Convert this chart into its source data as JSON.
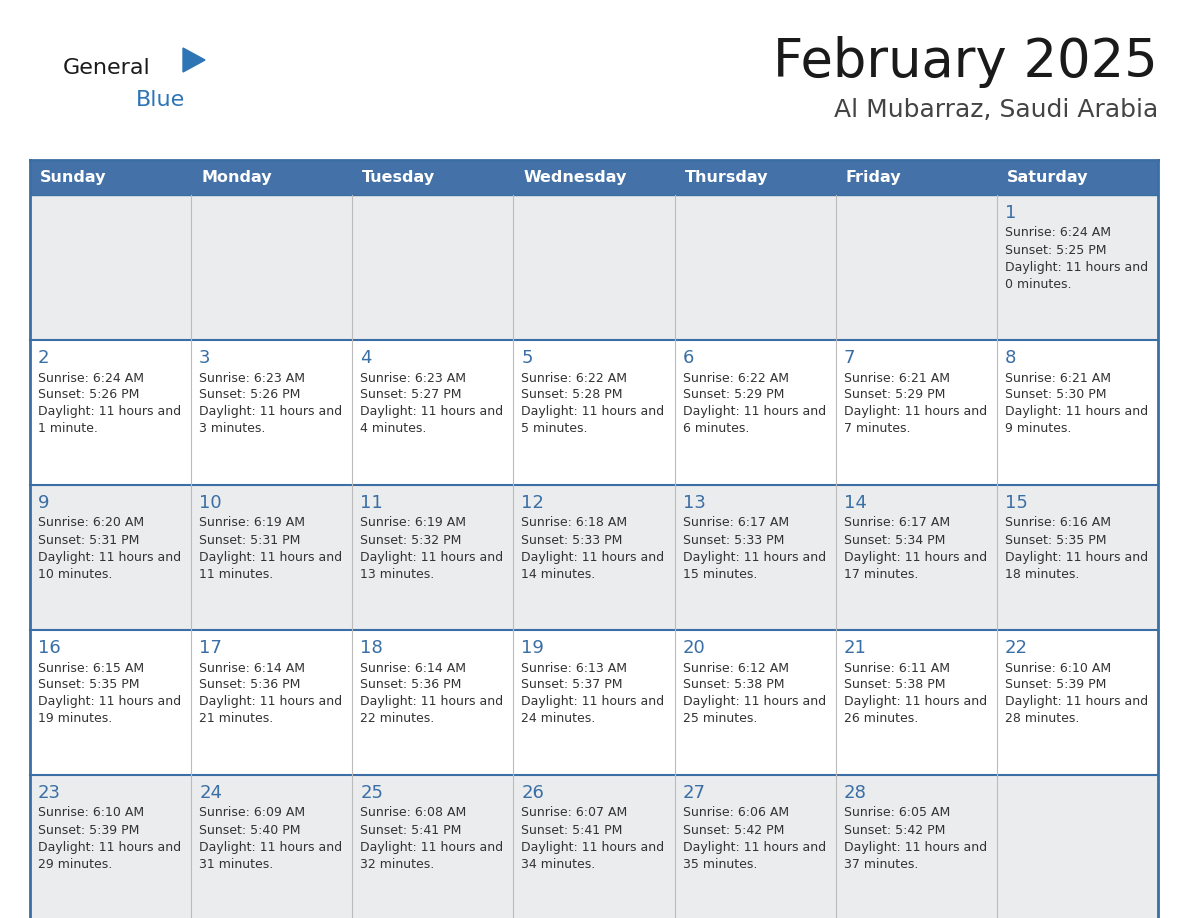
{
  "title": "February 2025",
  "subtitle": "Al Mubarraz, Saudi Arabia",
  "days_of_week": [
    "Sunday",
    "Monday",
    "Tuesday",
    "Wednesday",
    "Thursday",
    "Friday",
    "Saturday"
  ],
  "header_bg": "#4472A8",
  "header_text": "#FFFFFF",
  "row_bg_odd": "#EAECEE",
  "row_bg_even": "#FFFFFF",
  "day_num_color": "#3A6EA5",
  "cell_text_color": "#333333",
  "border_color": "#3A6EA5",
  "title_color": "#1a1a1a",
  "subtitle_color": "#444444",
  "logo_general_color": "#1a1a1a",
  "logo_blue_color": "#2E75B6",
  "calendar_data": [
    [
      null,
      null,
      null,
      null,
      null,
      null,
      {
        "day": 1,
        "sunrise": "6:24 AM",
        "sunset": "5:25 PM",
        "daylight": "11 hours and 0 minutes."
      }
    ],
    [
      {
        "day": 2,
        "sunrise": "6:24 AM",
        "sunset": "5:26 PM",
        "daylight": "11 hours and 1 minute."
      },
      {
        "day": 3,
        "sunrise": "6:23 AM",
        "sunset": "5:26 PM",
        "daylight": "11 hours and 3 minutes."
      },
      {
        "day": 4,
        "sunrise": "6:23 AM",
        "sunset": "5:27 PM",
        "daylight": "11 hours and 4 minutes."
      },
      {
        "day": 5,
        "sunrise": "6:22 AM",
        "sunset": "5:28 PM",
        "daylight": "11 hours and 5 minutes."
      },
      {
        "day": 6,
        "sunrise": "6:22 AM",
        "sunset": "5:29 PM",
        "daylight": "11 hours and 6 minutes."
      },
      {
        "day": 7,
        "sunrise": "6:21 AM",
        "sunset": "5:29 PM",
        "daylight": "11 hours and 7 minutes."
      },
      {
        "day": 8,
        "sunrise": "6:21 AM",
        "sunset": "5:30 PM",
        "daylight": "11 hours and 9 minutes."
      }
    ],
    [
      {
        "day": 9,
        "sunrise": "6:20 AM",
        "sunset": "5:31 PM",
        "daylight": "11 hours and 10 minutes."
      },
      {
        "day": 10,
        "sunrise": "6:19 AM",
        "sunset": "5:31 PM",
        "daylight": "11 hours and 11 minutes."
      },
      {
        "day": 11,
        "sunrise": "6:19 AM",
        "sunset": "5:32 PM",
        "daylight": "11 hours and 13 minutes."
      },
      {
        "day": 12,
        "sunrise": "6:18 AM",
        "sunset": "5:33 PM",
        "daylight": "11 hours and 14 minutes."
      },
      {
        "day": 13,
        "sunrise": "6:17 AM",
        "sunset": "5:33 PM",
        "daylight": "11 hours and 15 minutes."
      },
      {
        "day": 14,
        "sunrise": "6:17 AM",
        "sunset": "5:34 PM",
        "daylight": "11 hours and 17 minutes."
      },
      {
        "day": 15,
        "sunrise": "6:16 AM",
        "sunset": "5:35 PM",
        "daylight": "11 hours and 18 minutes."
      }
    ],
    [
      {
        "day": 16,
        "sunrise": "6:15 AM",
        "sunset": "5:35 PM",
        "daylight": "11 hours and 19 minutes."
      },
      {
        "day": 17,
        "sunrise": "6:14 AM",
        "sunset": "5:36 PM",
        "daylight": "11 hours and 21 minutes."
      },
      {
        "day": 18,
        "sunrise": "6:14 AM",
        "sunset": "5:36 PM",
        "daylight": "11 hours and 22 minutes."
      },
      {
        "day": 19,
        "sunrise": "6:13 AM",
        "sunset": "5:37 PM",
        "daylight": "11 hours and 24 minutes."
      },
      {
        "day": 20,
        "sunrise": "6:12 AM",
        "sunset": "5:38 PM",
        "daylight": "11 hours and 25 minutes."
      },
      {
        "day": 21,
        "sunrise": "6:11 AM",
        "sunset": "5:38 PM",
        "daylight": "11 hours and 26 minutes."
      },
      {
        "day": 22,
        "sunrise": "6:10 AM",
        "sunset": "5:39 PM",
        "daylight": "11 hours and 28 minutes."
      }
    ],
    [
      {
        "day": 23,
        "sunrise": "6:10 AM",
        "sunset": "5:39 PM",
        "daylight": "11 hours and 29 minutes."
      },
      {
        "day": 24,
        "sunrise": "6:09 AM",
        "sunset": "5:40 PM",
        "daylight": "11 hours and 31 minutes."
      },
      {
        "day": 25,
        "sunrise": "6:08 AM",
        "sunset": "5:41 PM",
        "daylight": "11 hours and 32 minutes."
      },
      {
        "day": 26,
        "sunrise": "6:07 AM",
        "sunset": "5:41 PM",
        "daylight": "11 hours and 34 minutes."
      },
      {
        "day": 27,
        "sunrise": "6:06 AM",
        "sunset": "5:42 PM",
        "daylight": "11 hours and 35 minutes."
      },
      {
        "day": 28,
        "sunrise": "6:05 AM",
        "sunset": "5:42 PM",
        "daylight": "11 hours and 37 minutes."
      },
      null
    ]
  ]
}
